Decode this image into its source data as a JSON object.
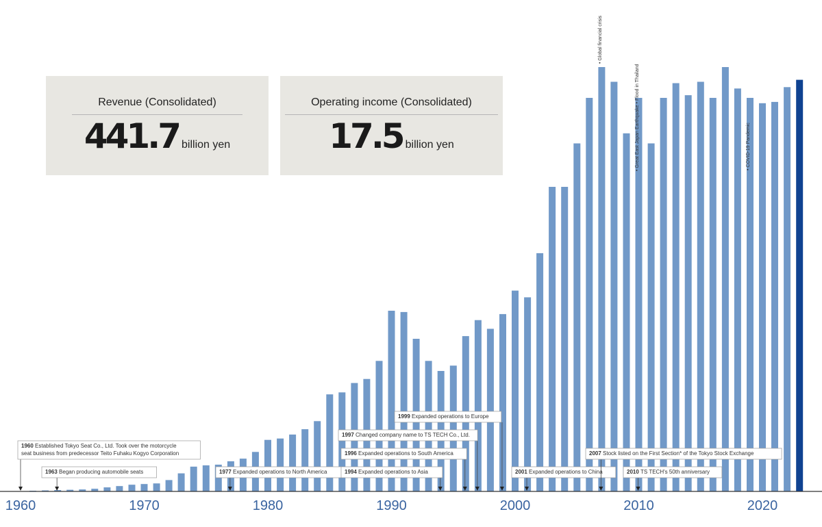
{
  "kpis": [
    {
      "label": "Revenue (Consolidated)",
      "value": "441.7",
      "unit": "billion yen"
    },
    {
      "label": "Operating income (Consolidated)",
      "value": "17.5",
      "unit": "billion yen"
    }
  ],
  "colors": {
    "bar": "#7199c8",
    "bar_latest": "#0f4291",
    "axis": "#333333",
    "tick": "#3a64a0",
    "kpi_bg": "#e8e7e2"
  },
  "chart_data": {
    "type": "bar",
    "x_ticks": [
      1960,
      1970,
      1980,
      1990,
      2000,
      2010,
      2020
    ],
    "years": [
      1960,
      1961,
      1962,
      1963,
      1964,
      1965,
      1966,
      1967,
      1968,
      1969,
      1970,
      1971,
      1972,
      1973,
      1974,
      1975,
      1976,
      1977,
      1978,
      1979,
      1980,
      1981,
      1982,
      1983,
      1984,
      1985,
      1986,
      1987,
      1988,
      1989,
      1990,
      1991,
      1992,
      1993,
      1994,
      1995,
      1996,
      1997,
      1998,
      1999,
      2000,
      2001,
      2002,
      2003,
      2004,
      2005,
      2006,
      2007,
      2008,
      2009,
      2010,
      2011,
      2012,
      2013,
      2014,
      2015,
      2016,
      2017,
      2018,
      2019,
      2020,
      2021,
      2022,
      2023
    ],
    "values": [
      0,
      1,
      1.5,
      2,
      2.5,
      3,
      4,
      6,
      8,
      10,
      11,
      12,
      17,
      27,
      37,
      39,
      40,
      45,
      49,
      59,
      77,
      79,
      85,
      93,
      105,
      145,
      148,
      162,
      168,
      195,
      270,
      268,
      228,
      195,
      180,
      188,
      232,
      256,
      243,
      265,
      300,
      290,
      356,
      455,
      455,
      520,
      588,
      634,
      612,
      535,
      588,
      520,
      588,
      610,
      592,
      612,
      588,
      634,
      602,
      588,
      580,
      582,
      604,
      615
    ],
    "latest_highlighted_year": 2023,
    "events": [
      {
        "year": 1960,
        "year_label": "1960",
        "lines": [
          "Established Tokyo Seat Co., Ltd. Took over the motorcycle",
          "seat business from predecessor Teito Fuhaku Kogyo Corporation"
        ]
      },
      {
        "year": 1963,
        "year_label": "1963",
        "lines": [
          "Began producing automobile seats"
        ]
      },
      {
        "year": 1977,
        "year_label": "1977",
        "lines": [
          "Expanded operations to North America"
        ]
      },
      {
        "year": 1994,
        "year_label": "1994",
        "lines": [
          "Expanded operations to Asia"
        ]
      },
      {
        "year": 1996,
        "year_label": "1996",
        "lines": [
          "Expanded operations to South America"
        ]
      },
      {
        "year": 1997,
        "year_label": "1997",
        "lines": [
          "Changed company name to TS TECH Co., Ltd."
        ]
      },
      {
        "year": 1999,
        "year_label": "1999",
        "lines": [
          "Expanded operations to Europe"
        ]
      },
      {
        "year": 2001,
        "year_label": "2001",
        "lines": [
          "Expanded operations to China"
        ]
      },
      {
        "year": 2007,
        "year_label": "2007",
        "lines": [
          "Stock listed on the First Section* of the Tokyo Stock Exchange"
        ]
      },
      {
        "year": 2010,
        "year_label": "2010",
        "lines": [
          "TS TECH's 50th anniversary"
        ]
      }
    ],
    "vertical_annotations": [
      {
        "year": 2008,
        "text": "• Global financial crisis"
      },
      {
        "year": 2011,
        "text": "• Great East Japan Earthquake • Flood in Thailand"
      },
      {
        "year": 2020,
        "text": "• COVID-19 Pandemic"
      }
    ]
  }
}
